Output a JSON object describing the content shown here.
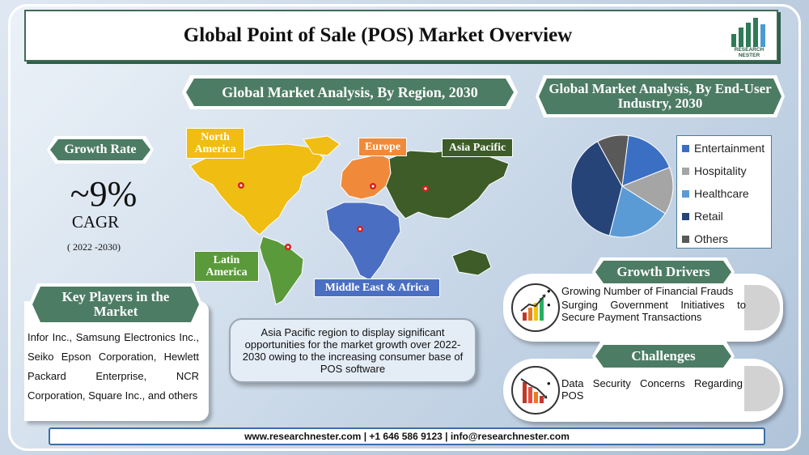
{
  "header": {
    "title": "Global Point of Sale (POS) Market Overview",
    "logo_text_1": "RESEARCH",
    "logo_text_2": "NESTER"
  },
  "growth": {
    "label": "Growth Rate",
    "value": "~9%",
    "unit": "CAGR",
    "period": "( 2022 -2030)"
  },
  "region_section": {
    "title": "Global Market Analysis, By Region, 2030",
    "regions": {
      "north_america": "North America",
      "europe": "Europe",
      "asia_pacific": "Asia Pacific",
      "latin_america": "Latin America",
      "mea": "Middle East & Africa"
    },
    "colors": {
      "north_america": "#f0bd12",
      "europe": "#f08a3a",
      "asia_pacific": "#3d5c28",
      "latin_america": "#5a9a3a",
      "mea": "#4a6fc2"
    }
  },
  "enduser_section": {
    "title": "Global Market Analysis, By End-User Industry, 2030",
    "chart_data": {
      "type": "pie",
      "title": "Global Market Analysis, By End-User Industry, 2030",
      "labels": [
        "Entertainment",
        "Hospitality",
        "Healthcare",
        "Retail",
        "Others"
      ],
      "values": [
        17,
        15,
        20,
        38,
        10
      ],
      "colors": [
        "#3a6fc4",
        "#a5a5a5",
        "#5b9bd5",
        "#264478",
        "#595959"
      ],
      "legend_position": "right"
    }
  },
  "key_players": {
    "title": "Key Players in the Market",
    "text": "Infor Inc., Samsung Electronics Inc., Seiko Epson Corporation, Hewlett Packard Enterprise, NCR Corporation, Square Inc., and others"
  },
  "insight": {
    "text": "Asia Pacific region to display significant opportunities for the market growth over 2022-2030 owing to the increasing consumer base of POS software"
  },
  "growth_drivers": {
    "title": "Growth Drivers",
    "items": [
      "Growing Number of Financial Frauds",
      "Surging Government Initiatives to Secure Payment Transactions"
    ]
  },
  "challenges": {
    "title": "Challenges",
    "items": [
      "Data Security Concerns Regarding POS"
    ]
  },
  "footer": {
    "text": "www.researchnester.com | +1 646 586 9123 | info@researchnester.com"
  }
}
